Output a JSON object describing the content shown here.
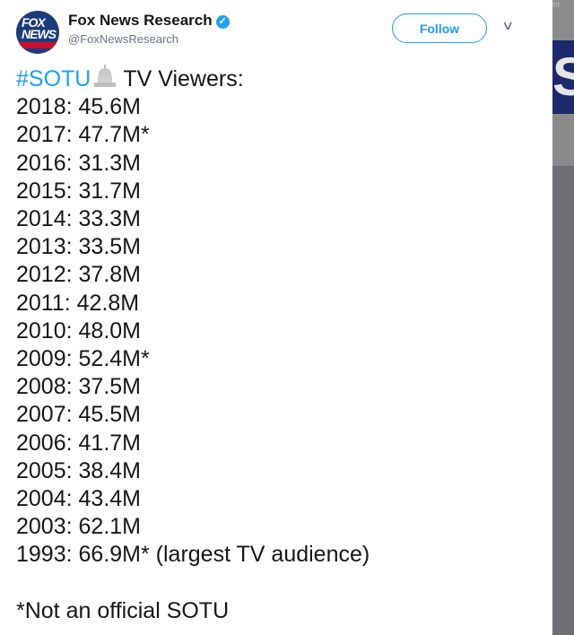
{
  "tweet": {
    "author_name": "Fox News Research",
    "handle": "@FoxNewsResearch",
    "avatar_text": "FOX NEWS",
    "follow_label": "Follow",
    "hashtag": "#SOTU",
    "headline_rest": "TV Viewers:",
    "lines": [
      "2018: 45.6M",
      "2017: 47.7M*",
      "2016: 31.3M",
      "2015: 31.7M",
      "2014: 33.3M",
      "2013: 33.5M",
      "2012: 37.8M",
      "2011: 42.8M",
      "2010: 48.0M",
      "2009: 52.4M*",
      "2008: 37.5M",
      "2007: 45.5M",
      "2006: 41.7M",
      "2005: 38.4M",
      "2004: 43.4M",
      "2003: 62.1M",
      "1993: 66.9M* (largest TV audience)"
    ],
    "footnote": "*Not an official SOTU"
  },
  "background": {
    "partial_text": "er",
    "partial_letter": "S"
  },
  "colors": {
    "accent": "#1da1f2",
    "text": "#14171a",
    "muted": "#657786"
  },
  "icons": {
    "verified": "verified-badge-icon",
    "caret": "chevron-down-icon",
    "capitol": "classical-building-icon"
  }
}
